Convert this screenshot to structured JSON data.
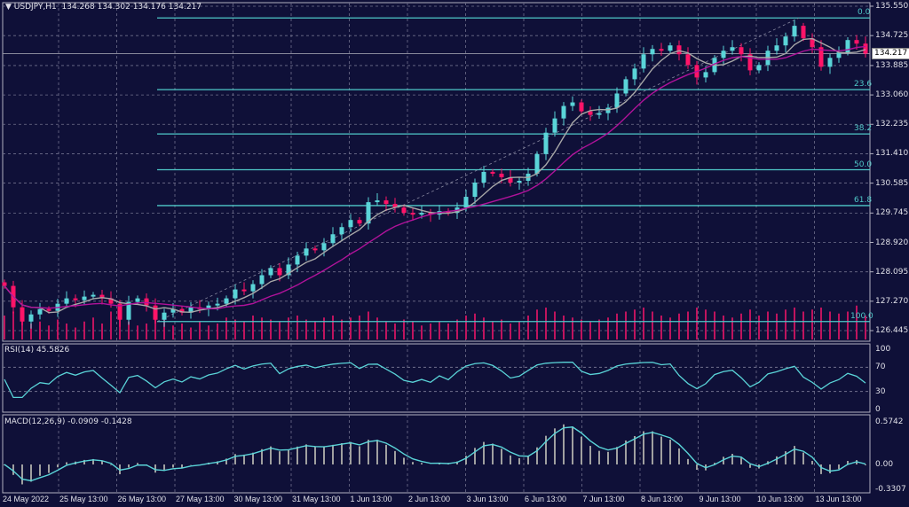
{
  "header": {
    "symbol": "USDJPY,H1",
    "open": "134.268",
    "high": "134.302",
    "low": "134.176",
    "close": "134.217"
  },
  "chart_data": {
    "type": "candlestick",
    "title": "USDJPY,H1",
    "ylim": [
      126.445,
      135.55
    ],
    "y_ticks": [
      "135.550",
      "134.725",
      "133.885",
      "133.060",
      "132.235",
      "131.410",
      "130.585",
      "129.745",
      "128.920",
      "128.095",
      "127.270",
      "126.445"
    ],
    "x_ticks": [
      "24 May 2022",
      "25 May 13:00",
      "26 May 13:00",
      "27 May 13:00",
      "30 May 13:00",
      "31 May 13:00",
      "1 Jun 13:00",
      "2 Jun 13:00",
      "3 Jun 13:00",
      "6 Jun 13:00",
      "7 Jun 13:00",
      "8 Jun 13:00",
      "9 Jun 13:00",
      "10 Jun 13:00",
      "13 Jun 13:00"
    ],
    "current_price": "134.217",
    "closes": [
      127.7,
      127.1,
      126.7,
      126.9,
      127.05,
      127.0,
      127.2,
      127.35,
      127.3,
      127.4,
      127.45,
      127.35,
      127.2,
      126.75,
      127.25,
      127.35,
      127.15,
      126.75,
      126.95,
      127.05,
      126.95,
      127.1,
      127.05,
      127.15,
      127.2,
      127.35,
      127.6,
      127.55,
      127.75,
      128.0,
      128.2,
      128.0,
      128.3,
      128.55,
      128.75,
      128.7,
      128.9,
      129.15,
      129.35,
      129.55,
      129.45,
      130.05,
      130.1,
      130.0,
      129.9,
      129.75,
      129.7,
      129.75,
      129.7,
      129.8,
      129.75,
      129.9,
      130.2,
      130.6,
      130.9,
      130.85,
      130.75,
      130.6,
      130.65,
      130.85,
      131.4,
      132.0,
      132.4,
      132.75,
      132.85,
      132.6,
      132.5,
      132.55,
      132.7,
      133.1,
      133.5,
      133.8,
      134.2,
      134.35,
      134.3,
      134.45,
      134.2,
      133.9,
      133.55,
      133.7,
      134.1,
      134.3,
      134.4,
      134.2,
      133.75,
      133.9,
      134.3,
      134.45,
      134.7,
      135.0,
      134.65,
      134.4,
      133.85,
      134.1,
      134.25,
      134.6,
      134.5,
      134.22
    ],
    "volumes": [
      60,
      70,
      55,
      40,
      45,
      35,
      50,
      40,
      30,
      45,
      55,
      40,
      70,
      90,
      45,
      35,
      40,
      80,
      50,
      35,
      40,
      30,
      45,
      35,
      40,
      55,
      50,
      45,
      60,
      55,
      50,
      45,
      55,
      60,
      50,
      45,
      55,
      60,
      50,
      55,
      60,
      70,
      55,
      45,
      40,
      50,
      45,
      35,
      40,
      45,
      40,
      50,
      60,
      65,
      55,
      45,
      50,
      40,
      45,
      60,
      75,
      80,
      70,
      60,
      55,
      50,
      45,
      50,
      55,
      65,
      70,
      75,
      80,
      70,
      60,
      55,
      65,
      70,
      80,
      75,
      70,
      60,
      55,
      65,
      75,
      60,
      70,
      65,
      75,
      80,
      70,
      75,
      80,
      70,
      65,
      70,
      85,
      60
    ],
    "moving_averages": [
      {
        "color": "#a8a8a8"
      },
      {
        "color": "#b0129a"
      }
    ],
    "fibonacci": {
      "high": 135.22,
      "low": 126.7,
      "levels": [
        {
          "label": "0.0",
          "ratio": 0
        },
        {
          "label": "23.6",
          "ratio": 0.236
        },
        {
          "label": "38.2",
          "ratio": 0.382
        },
        {
          "label": "50.0",
          "ratio": 0.5
        },
        {
          "label": "61.8",
          "ratio": 0.618
        },
        {
          "label": "100.0",
          "ratio": 1
        }
      ]
    },
    "rsi": {
      "label": "RSI(14) 45.5826",
      "ticks": [
        "100",
        "70",
        "30",
        "0"
      ],
      "levels": [
        70,
        30
      ]
    },
    "macd": {
      "label": "MACD(12,26,9) -0.0909 -0.1428",
      "ticks": [
        "0.5742",
        "0.00",
        "-0.3307"
      ],
      "ylim": [
        -0.3307,
        0.5742
      ]
    },
    "colors": {
      "background": "#0f1038",
      "up": "#5ad4d8",
      "down": "#ff1468",
      "fib": "#4fc8c8",
      "volume": "#c0145e",
      "grid": "#70708c",
      "rsi": "#5ad4d8",
      "macd_signal": "#5ad4d8",
      "macd_hist": "#a0a0a0"
    }
  }
}
